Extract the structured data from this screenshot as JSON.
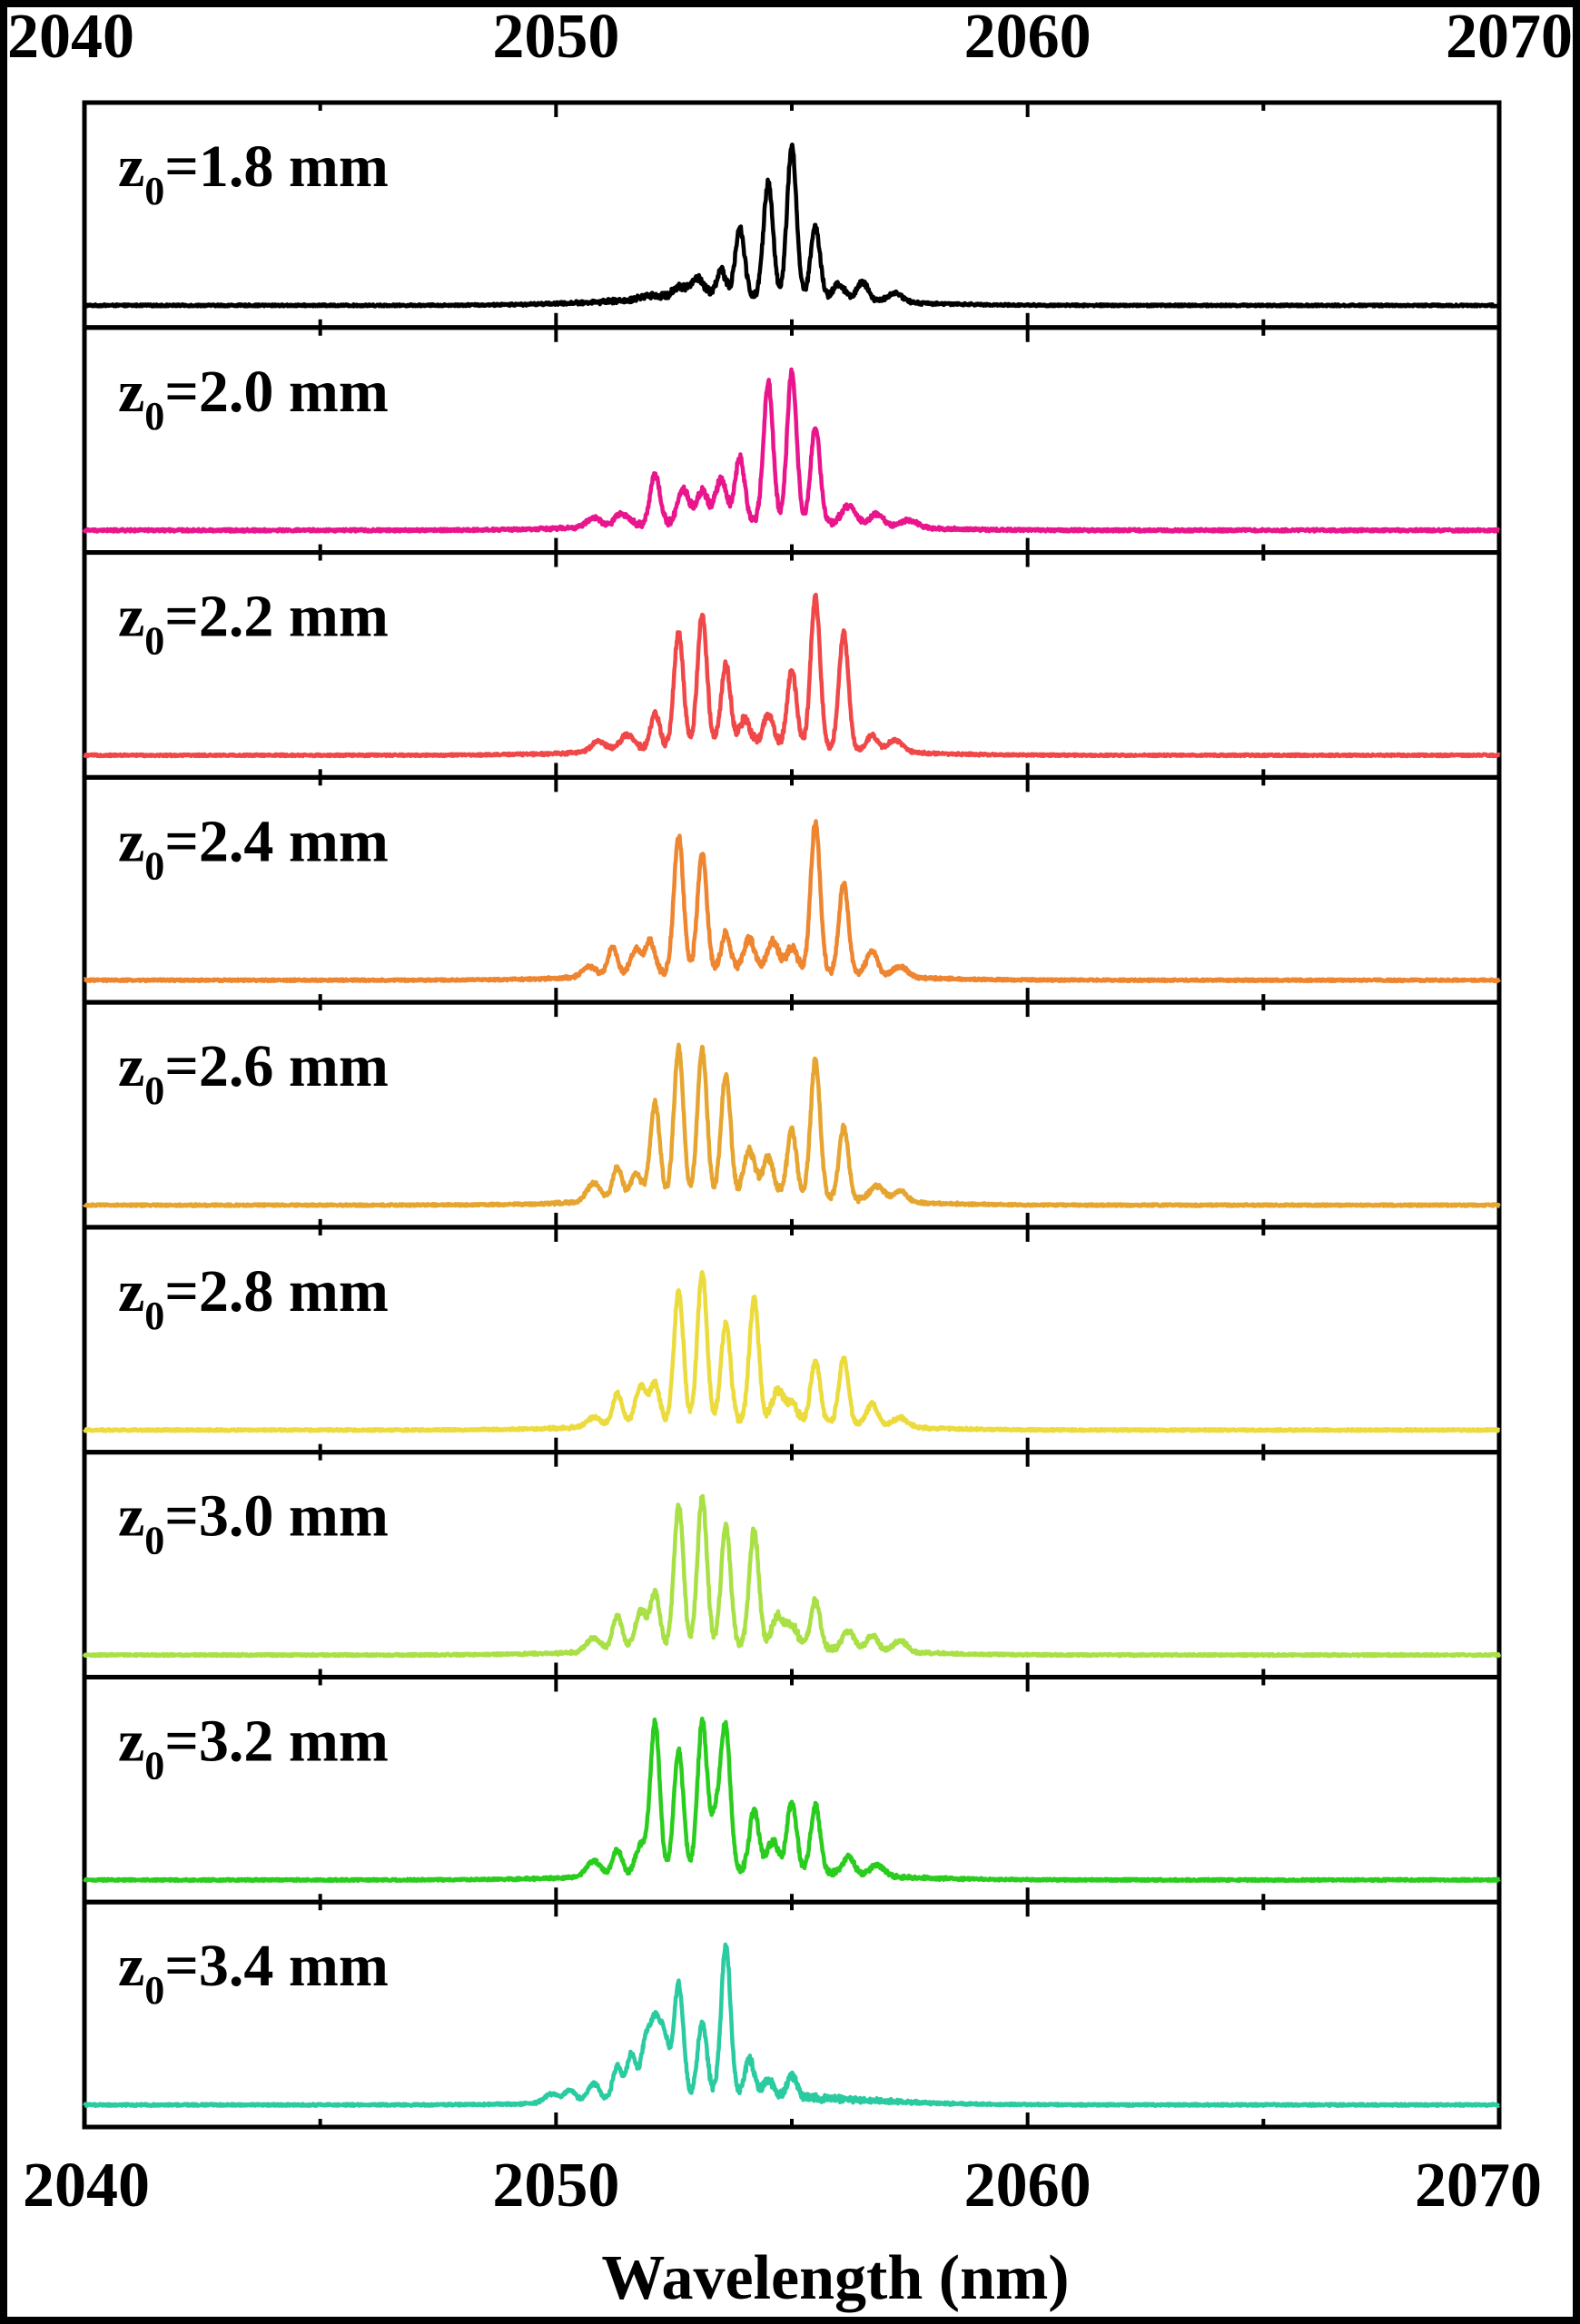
{
  "chart_data": {
    "type": "line",
    "xlabel": "Wavelength (nm)",
    "ylabel": "",
    "xlim": [
      2040,
      2070
    ],
    "x_ticks": [
      {
        "value": 2040,
        "label": "2040"
      },
      {
        "value": 2050,
        "label": "2050"
      },
      {
        "value": 2060,
        "label": "2060"
      },
      {
        "value": 2070,
        "label": "2070"
      }
    ],
    "minor_tick_step": 5,
    "ylim": [
      0,
      1
    ],
    "grid": false,
    "layout": "stacked panels, shared wavelength axis (top and bottom)",
    "series": [
      {
        "name": "z0=1.8 mm",
        "label_main": "z",
        "label_sub": "0",
        "label_rest": "=1.8 mm",
        "color": "#000000",
        "baseline": 0.04,
        "noise": 0.006,
        "peaks": [
          [
            2055.0,
            0.98,
            0.1
          ],
          [
            2054.5,
            0.75,
            0.1
          ],
          [
            2053.9,
            0.44,
            0.1
          ],
          [
            2055.5,
            0.46,
            0.1
          ],
          [
            2053.5,
            0.17,
            0.1
          ],
          [
            2056.5,
            0.12,
            0.12
          ],
          [
            2056.0,
            0.1,
            0.12
          ],
          [
            2053.0,
            0.12,
            0.15
          ],
          [
            2052.6,
            0.07,
            0.15
          ],
          [
            2057.2,
            0.06,
            0.15
          ],
          [
            2052.0,
            0.03,
            0.2
          ]
        ]
      },
      {
        "name": "z0=2.0 mm",
        "label_main": "z",
        "label_sub": "0",
        "label_rest": "=2.0 mm",
        "color": "#E8158C",
        "baseline": 0.04,
        "noise": 0.008,
        "peaks": [
          [
            2055.0,
            0.98,
            0.1
          ],
          [
            2054.5,
            0.91,
            0.1
          ],
          [
            2055.5,
            0.63,
            0.1
          ],
          [
            2053.9,
            0.42,
            0.1
          ],
          [
            2052.1,
            0.33,
            0.1
          ],
          [
            2053.5,
            0.28,
            0.12
          ],
          [
            2052.7,
            0.22,
            0.12
          ],
          [
            2053.1,
            0.2,
            0.12
          ],
          [
            2056.2,
            0.12,
            0.15
          ],
          [
            2056.8,
            0.08,
            0.15
          ],
          [
            2051.4,
            0.08,
            0.15
          ],
          [
            2050.8,
            0.06,
            0.15
          ],
          [
            2057.5,
            0.05,
            0.18
          ]
        ]
      },
      {
        "name": "z0=2.2 mm",
        "label_main": "z",
        "label_sub": "0",
        "label_rest": "=2.2 mm",
        "color": "#F04848",
        "baseline": 0.04,
        "noise": 0.006,
        "peaks": [
          [
            2055.5,
            0.98,
            0.1
          ],
          [
            2053.1,
            0.86,
            0.1
          ],
          [
            2052.6,
            0.75,
            0.1
          ],
          [
            2056.1,
            0.76,
            0.1
          ],
          [
            2053.6,
            0.53,
            0.1
          ],
          [
            2055.0,
            0.5,
            0.1
          ],
          [
            2052.1,
            0.23,
            0.1
          ],
          [
            2054.0,
            0.18,
            0.12
          ],
          [
            2054.5,
            0.2,
            0.12
          ],
          [
            2056.7,
            0.1,
            0.12
          ],
          [
            2051.5,
            0.1,
            0.15
          ],
          [
            2057.2,
            0.08,
            0.15
          ],
          [
            2050.9,
            0.07,
            0.15
          ]
        ]
      },
      {
        "name": "z0=2.4 mm",
        "label_main": "z",
        "label_sub": "0",
        "label_rest": "=2.4 mm",
        "color": "#EE8530",
        "baseline": 0.04,
        "noise": 0.006,
        "peaks": [
          [
            2055.5,
            0.98,
            0.1
          ],
          [
            2052.6,
            0.89,
            0.1
          ],
          [
            2053.1,
            0.77,
            0.1
          ],
          [
            2056.1,
            0.6,
            0.1
          ],
          [
            2053.6,
            0.25,
            0.1
          ],
          [
            2051.2,
            0.19,
            0.1
          ],
          [
            2052.0,
            0.21,
            0.1
          ],
          [
            2054.1,
            0.21,
            0.12
          ],
          [
            2054.6,
            0.2,
            0.12
          ],
          [
            2055.0,
            0.16,
            0.12
          ],
          [
            2056.7,
            0.16,
            0.12
          ],
          [
            2051.7,
            0.17,
            0.12
          ],
          [
            2050.7,
            0.07,
            0.15
          ],
          [
            2057.3,
            0.07,
            0.15
          ]
        ]
      },
      {
        "name": "z0=2.6 mm",
        "label_main": "z",
        "label_sub": "0",
        "label_rest": "=2.6 mm",
        "color": "#E6A530",
        "baseline": 0.04,
        "noise": 0.006,
        "peaks": [
          [
            2052.6,
            0.98,
            0.1
          ],
          [
            2053.1,
            0.96,
            0.1
          ],
          [
            2055.5,
            0.9,
            0.1
          ],
          [
            2053.6,
            0.8,
            0.1
          ],
          [
            2052.1,
            0.63,
            0.1
          ],
          [
            2055.0,
            0.43,
            0.1
          ],
          [
            2056.1,
            0.47,
            0.1
          ],
          [
            2054.1,
            0.3,
            0.12
          ],
          [
            2054.5,
            0.25,
            0.12
          ],
          [
            2051.3,
            0.22,
            0.1
          ],
          [
            2051.7,
            0.17,
            0.12
          ],
          [
            2050.8,
            0.12,
            0.15
          ],
          [
            2056.8,
            0.1,
            0.15
          ],
          [
            2057.3,
            0.07,
            0.15
          ]
        ]
      },
      {
        "name": "z0=2.8 mm",
        "label_main": "z",
        "label_sub": "0",
        "label_rest": "=2.8 mm",
        "color": "#EBDB3C",
        "baseline": 0.04,
        "noise": 0.006,
        "peaks": [
          [
            2053.1,
            0.98,
            0.1
          ],
          [
            2052.6,
            0.86,
            0.1
          ],
          [
            2054.2,
            0.8,
            0.1
          ],
          [
            2053.6,
            0.64,
            0.1
          ],
          [
            2056.1,
            0.43,
            0.1
          ],
          [
            2055.5,
            0.41,
            0.1
          ],
          [
            2052.1,
            0.26,
            0.1
          ],
          [
            2051.3,
            0.21,
            0.1
          ],
          [
            2051.8,
            0.25,
            0.12
          ],
          [
            2054.7,
            0.2,
            0.12
          ],
          [
            2055.0,
            0.12,
            0.12
          ],
          [
            2056.7,
            0.14,
            0.12
          ],
          [
            2050.8,
            0.06,
            0.15
          ],
          [
            2057.3,
            0.06,
            0.15
          ]
        ]
      },
      {
        "name": "z0=3.0 mm",
        "label_main": "z",
        "label_sub": "0",
        "label_rest": "=3.0 mm",
        "color": "#A8E045",
        "baseline": 0.04,
        "noise": 0.006,
        "peaks": [
          [
            2053.1,
            0.98,
            0.1
          ],
          [
            2052.6,
            0.93,
            0.1
          ],
          [
            2053.6,
            0.79,
            0.1
          ],
          [
            2054.2,
            0.76,
            0.1
          ],
          [
            2052.1,
            0.36,
            0.1
          ],
          [
            2055.5,
            0.31,
            0.1
          ],
          [
            2051.3,
            0.23,
            0.1
          ],
          [
            2051.8,
            0.25,
            0.12
          ],
          [
            2054.7,
            0.2,
            0.12
          ],
          [
            2055.0,
            0.14,
            0.12
          ],
          [
            2056.2,
            0.12,
            0.12
          ],
          [
            2056.7,
            0.1,
            0.12
          ],
          [
            2050.8,
            0.09,
            0.15
          ],
          [
            2057.3,
            0.07,
            0.15
          ]
        ]
      },
      {
        "name": "z0=3.2 mm",
        "label_main": "z",
        "label_sub": "0",
        "label_rest": "=3.2 mm",
        "color": "#2ACD1E",
        "baseline": 0.04,
        "noise": 0.006,
        "peaks": [
          [
            2052.1,
            0.98,
            0.1
          ],
          [
            2053.1,
            0.97,
            0.1
          ],
          [
            2053.6,
            0.87,
            0.1
          ],
          [
            2052.6,
            0.8,
            0.1
          ],
          [
            2055.5,
            0.44,
            0.1
          ],
          [
            2055.0,
            0.46,
            0.1
          ],
          [
            2054.2,
            0.4,
            0.1
          ],
          [
            2053.4,
            0.35,
            0.12
          ],
          [
            2051.3,
            0.17,
            0.1
          ],
          [
            2051.8,
            0.19,
            0.12
          ],
          [
            2054.6,
            0.2,
            0.12
          ],
          [
            2056.2,
            0.12,
            0.12
          ],
          [
            2050.8,
            0.1,
            0.15
          ],
          [
            2056.8,
            0.07,
            0.15
          ]
        ]
      },
      {
        "name": "z0=3.4 mm",
        "label_main": "z",
        "label_sub": "0",
        "label_rest": "=3.4 mm",
        "color": "#2ACBA0",
        "baseline": 0.04,
        "noise": 0.006,
        "peaks": [
          [
            2053.6,
            0.98,
            0.1
          ],
          [
            2052.6,
            0.74,
            0.1
          ],
          [
            2053.1,
            0.48,
            0.1
          ],
          [
            2052.1,
            0.45,
            0.1
          ],
          [
            2052.3,
            0.38,
            0.1
          ],
          [
            2051.9,
            0.36,
            0.1
          ],
          [
            2051.6,
            0.3,
            0.1
          ],
          [
            2051.3,
            0.22,
            0.1
          ],
          [
            2054.1,
            0.24,
            0.1
          ],
          [
            2055.0,
            0.14,
            0.1
          ],
          [
            2050.8,
            0.12,
            0.12
          ],
          [
            2054.5,
            0.1,
            0.12
          ],
          [
            2050.3,
            0.08,
            0.12
          ],
          [
            2049.9,
            0.06,
            0.15
          ]
        ]
      }
    ]
  }
}
